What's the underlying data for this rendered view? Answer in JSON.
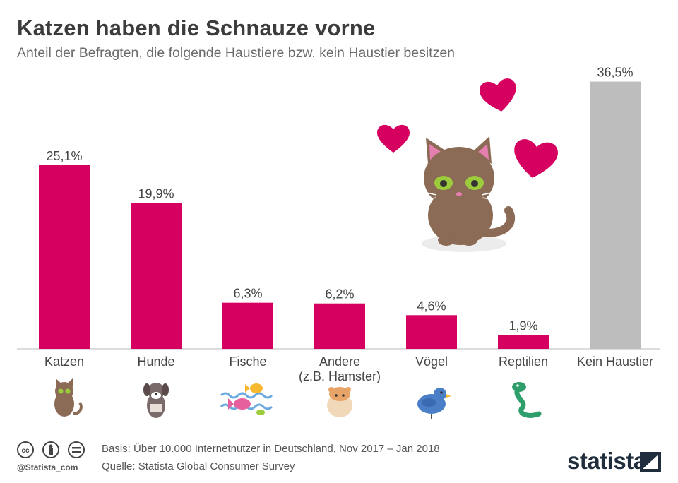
{
  "header": {
    "title": "Katzen haben die Schnauze vorne",
    "subtitle": "Anteil der Befragten, die folgende Haustiere bzw. kein Haustier besitzen"
  },
  "colors": {
    "accent": "#d5005f",
    "neutral": "#bdbdbd",
    "heart": "#d5005f",
    "cat_fur": "#8b6b55"
  },
  "chart_data": {
    "type": "bar",
    "categories": [
      "Katzen",
      "Hunde",
      "Fische",
      "Andere\n(z.B. Hamster)",
      "Vögel",
      "Reptilien",
      "Kein Haustier"
    ],
    "values": [
      25.1,
      19.9,
      6.3,
      6.2,
      4.6,
      1.9,
      36.5
    ],
    "value_labels": [
      "25,1%",
      "19,9%",
      "6,3%",
      "6,2%",
      "4,6%",
      "1,9%",
      "36,5%"
    ],
    "bar_colors": [
      "#d5005f",
      "#d5005f",
      "#d5005f",
      "#d5005f",
      "#d5005f",
      "#d5005f",
      "#bdbdbd"
    ],
    "icons": [
      "cat-icon",
      "dog-icon",
      "fish-icon",
      "hamster-icon",
      "bird-icon",
      "snake-icon",
      ""
    ],
    "ylim": [
      0,
      38
    ],
    "grid": false,
    "legend": "none"
  },
  "footer": {
    "basis": "Basis: Über 10.000 Internetnutzer in Deutschland, Nov 2017 – Jan 2018",
    "source": "Quelle: Statista Global Consumer Survey",
    "handle": "@Statista_com",
    "brand": "statista"
  }
}
